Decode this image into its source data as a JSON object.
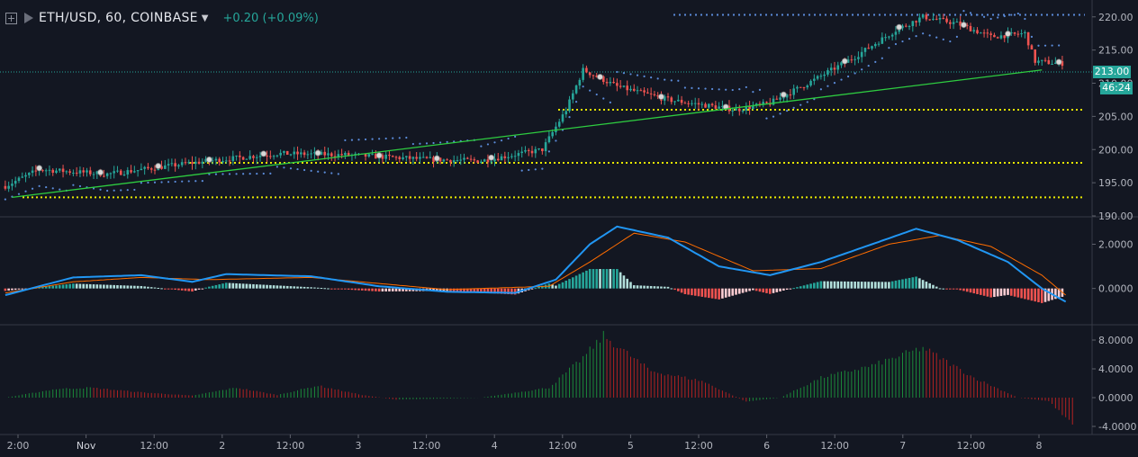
{
  "header": {
    "symbol_title": "ETH/USD, 60, COINBASE",
    "change_text": "+0.20 (+0.09%)"
  },
  "price_axis": {
    "current_price_label": "213.00",
    "countdown_label": "46:24"
  },
  "icons": [
    "expand-icon",
    "flag-icon",
    "caret-down-icon"
  ],
  "colors": {
    "background": "#131722",
    "up": "#26a69a",
    "down": "#ef5350",
    "macd_line": "#2196f3",
    "signal_line": "#ff6d00",
    "trendline": "#2ecc40",
    "support_lines": "#e8e800",
    "parabolic_sar": "#5b8bd9",
    "histogram_pos": "#1b8a3a",
    "histogram_neg": "#b22222"
  },
  "chart_data": [
    {
      "type": "candlestick",
      "panel": "price",
      "x_tick_labels": [
        "2:00",
        "Nov",
        "12:00",
        "2",
        "12:00",
        "3",
        "12:00",
        "4",
        "12:00",
        "5",
        "12:00",
        "6",
        "12:00",
        "7",
        "12:00",
        "8"
      ],
      "y_tick_labels": [
        "220.00",
        "215.00",
        "210.00",
        "205.00",
        "200.00",
        "195.00",
        "190.00"
      ],
      "ylim": [
        190,
        222
      ],
      "approx_close_path": [
        {
          "bar": 0,
          "close": 194.5
        },
        {
          "bar": 10,
          "close": 197.0
        },
        {
          "bar": 30,
          "close": 196.3
        },
        {
          "bar": 55,
          "close": 198.0
        },
        {
          "bar": 80,
          "close": 199.4
        },
        {
          "bar": 100,
          "close": 199.2
        },
        {
          "bar": 125,
          "close": 198.5
        },
        {
          "bar": 140,
          "close": 198.3
        },
        {
          "bar": 158,
          "close": 200.0
        },
        {
          "bar": 165,
          "close": 206.0
        },
        {
          "bar": 170,
          "close": 212.0
        },
        {
          "bar": 180,
          "close": 209.5
        },
        {
          "bar": 195,
          "close": 207.5
        },
        {
          "bar": 215,
          "close": 206.0
        },
        {
          "bar": 225,
          "close": 207.0
        },
        {
          "bar": 238,
          "close": 210.5
        },
        {
          "bar": 250,
          "close": 214.0
        },
        {
          "bar": 262,
          "close": 218.0
        },
        {
          "bar": 270,
          "close": 220.0
        },
        {
          "bar": 280,
          "close": 219.0
        },
        {
          "bar": 290,
          "close": 217.0
        },
        {
          "bar": 300,
          "close": 217.5
        },
        {
          "bar": 303,
          "close": 213.3
        },
        {
          "bar": 310,
          "close": 213.0
        }
      ],
      "support_levels": [
        206.0,
        198.0,
        192.8
      ],
      "resistance_levels": [
        220.3
      ],
      "trendline": {
        "from": {
          "bar": 2,
          "price": 192.8
        },
        "to": {
          "bar": 305,
          "price": 212.0
        }
      },
      "series": [
        {
          "kind": "candles"
        },
        {
          "kind": "parabolic-sar"
        },
        {
          "kind": "horizontal-lines"
        },
        {
          "kind": "trendline"
        }
      ]
    },
    {
      "type": "line",
      "panel": "macd",
      "y_tick_labels": [
        "2.0000",
        "0.0000"
      ],
      "ylim": [
        -1.6,
        3.2
      ],
      "macd_path": [
        {
          "bar": 0,
          "v": -0.3
        },
        {
          "bar": 20,
          "v": 0.5
        },
        {
          "bar": 40,
          "v": 0.6
        },
        {
          "bar": 55,
          "v": 0.3
        },
        {
          "bar": 65,
          "v": 0.65
        },
        {
          "bar": 90,
          "v": 0.55
        },
        {
          "bar": 110,
          "v": 0.1
        },
        {
          "bar": 130,
          "v": -0.15
        },
        {
          "bar": 150,
          "v": -0.2
        },
        {
          "bar": 162,
          "v": 0.4
        },
        {
          "bar": 172,
          "v": 2.0
        },
        {
          "bar": 180,
          "v": 2.8
        },
        {
          "bar": 195,
          "v": 2.3
        },
        {
          "bar": 210,
          "v": 1.0
        },
        {
          "bar": 225,
          "v": 0.6
        },
        {
          "bar": 240,
          "v": 1.2
        },
        {
          "bar": 255,
          "v": 2.0
        },
        {
          "bar": 268,
          "v": 2.7
        },
        {
          "bar": 280,
          "v": 2.2
        },
        {
          "bar": 295,
          "v": 1.2
        },
        {
          "bar": 305,
          "v": 0.0
        },
        {
          "bar": 312,
          "v": -0.6
        }
      ],
      "signal_path": [
        {
          "bar": 0,
          "v": -0.2
        },
        {
          "bar": 20,
          "v": 0.3
        },
        {
          "bar": 40,
          "v": 0.5
        },
        {
          "bar": 60,
          "v": 0.4
        },
        {
          "bar": 90,
          "v": 0.5
        },
        {
          "bar": 130,
          "v": -0.05
        },
        {
          "bar": 160,
          "v": 0.1
        },
        {
          "bar": 172,
          "v": 1.2
        },
        {
          "bar": 185,
          "v": 2.5
        },
        {
          "bar": 200,
          "v": 2.1
        },
        {
          "bar": 220,
          "v": 0.8
        },
        {
          "bar": 240,
          "v": 0.9
        },
        {
          "bar": 260,
          "v": 2.0
        },
        {
          "bar": 275,
          "v": 2.4
        },
        {
          "bar": 290,
          "v": 1.9
        },
        {
          "bar": 305,
          "v": 0.6
        },
        {
          "bar": 312,
          "v": -0.3
        }
      ],
      "series": [
        {
          "kind": "histogram"
        },
        {
          "kind": "macd-line"
        },
        {
          "kind": "signal-line"
        }
      ]
    },
    {
      "type": "bar",
      "panel": "oscillator",
      "y_tick_labels": [
        "8.0000",
        "4.0000",
        "0.0000",
        "-4.0000"
      ],
      "ylim": [
        -5,
        10
      ],
      "approx_path": [
        {
          "bar": 0,
          "v": 0
        },
        {
          "bar": 15,
          "v": 1.3
        },
        {
          "bar": 25,
          "v": 1.5
        },
        {
          "bar": 40,
          "v": 0.8
        },
        {
          "bar": 55,
          "v": 0.3
        },
        {
          "bar": 68,
          "v": 1.5
        },
        {
          "bar": 80,
          "v": 0.4
        },
        {
          "bar": 92,
          "v": 1.8
        },
        {
          "bar": 105,
          "v": 0.4
        },
        {
          "bar": 115,
          "v": -0.3
        },
        {
          "bar": 140,
          "v": 0.0
        },
        {
          "bar": 160,
          "v": 1.5
        },
        {
          "bar": 170,
          "v": 6.0
        },
        {
          "bar": 176,
          "v": 9.3
        },
        {
          "bar": 190,
          "v": 4.0
        },
        {
          "bar": 205,
          "v": 2.5
        },
        {
          "bar": 218,
          "v": -0.6
        },
        {
          "bar": 228,
          "v": 0.0
        },
        {
          "bar": 240,
          "v": 3.0
        },
        {
          "bar": 255,
          "v": 4.8
        },
        {
          "bar": 270,
          "v": 7.5
        },
        {
          "bar": 285,
          "v": 3.0
        },
        {
          "bar": 298,
          "v": 0.0
        },
        {
          "bar": 307,
          "v": -0.5
        },
        {
          "bar": 314,
          "v": -4.0
        }
      ],
      "series": [
        {
          "kind": "histogram"
        }
      ]
    }
  ]
}
